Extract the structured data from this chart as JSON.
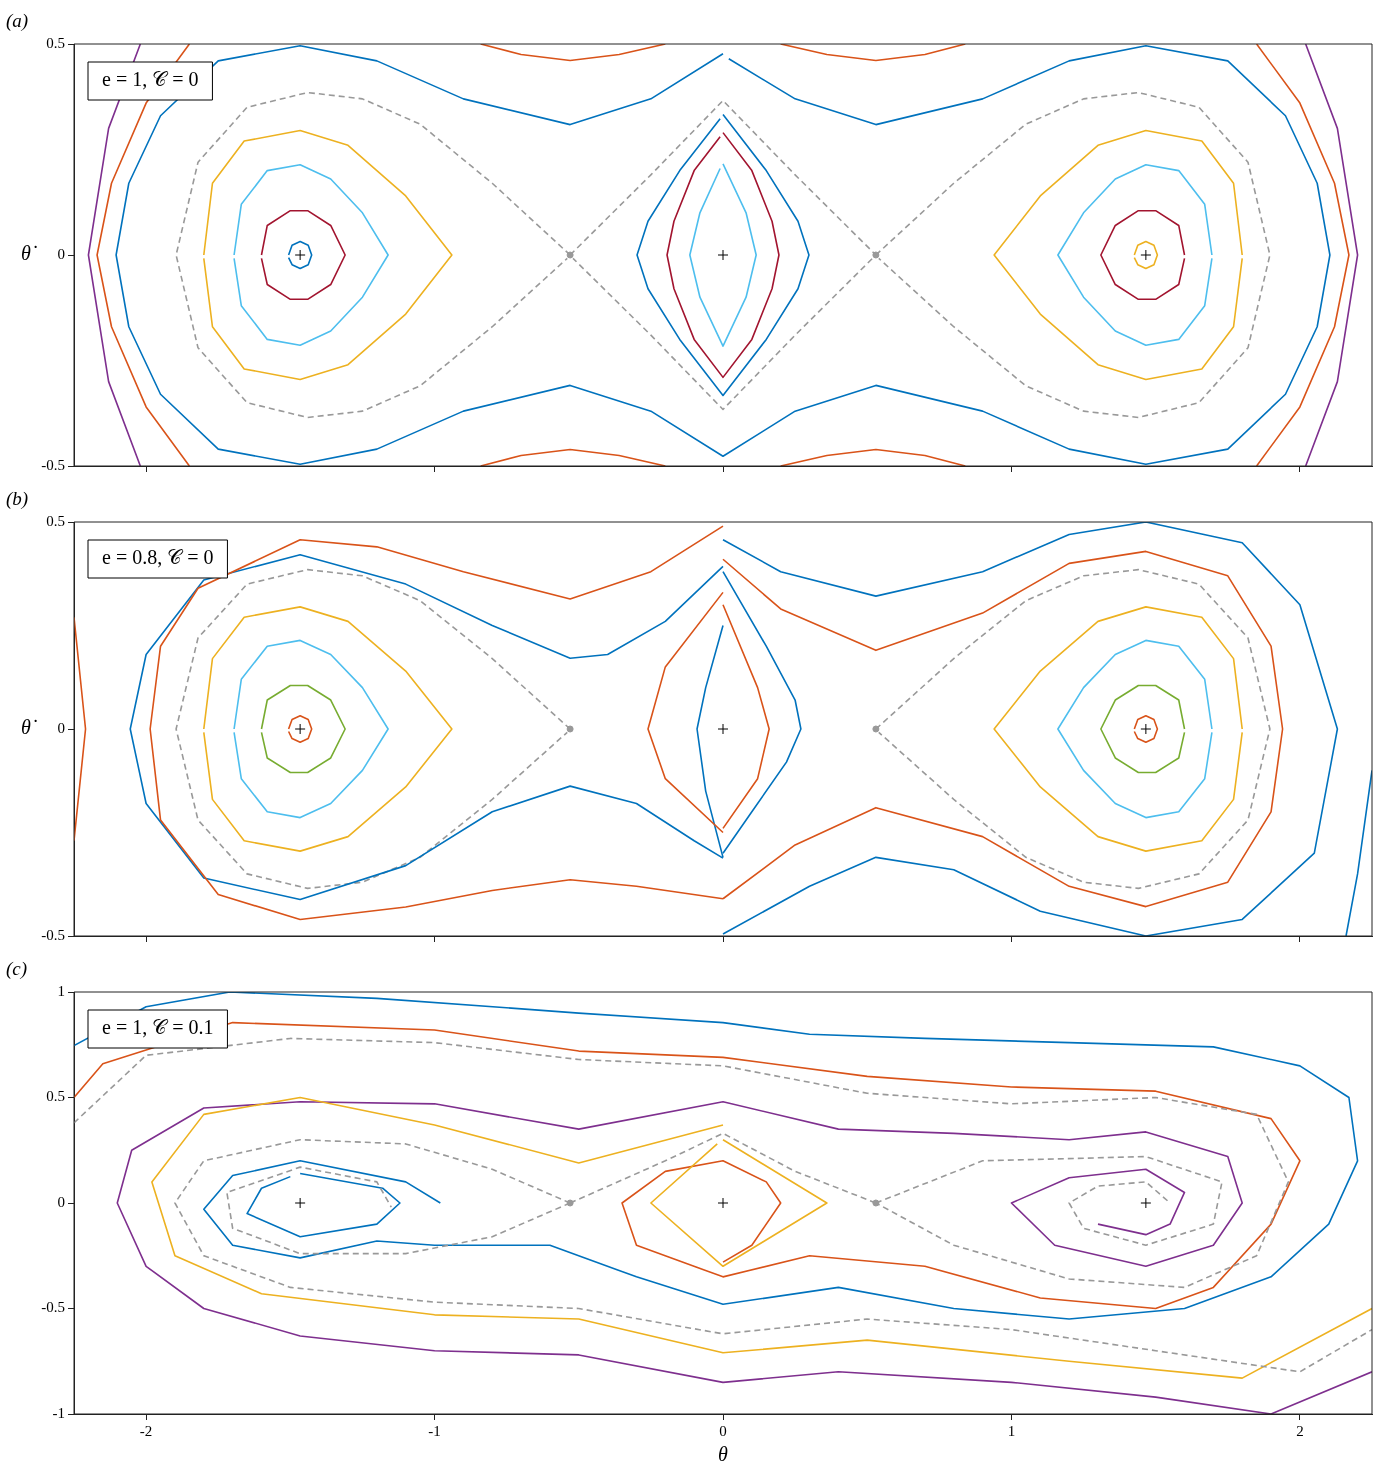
{
  "chart_data": [
    {
      "type": "line",
      "title": "(a)",
      "ylabel": "θ̇",
      "annotations": [
        "e = 1, 𝒞 = 0"
      ],
      "xlim": [
        -2.25,
        2.25
      ],
      "xticks": [
        -2,
        -1,
        0,
        1,
        2
      ],
      "ylim": [
        -0.5,
        0.5
      ],
      "yticks": [
        -0.5,
        0,
        0.5
      ],
      "tick_labels": "y",
      "grid": false,
      "legend": false,
      "series": [
        {
          "color": "#0072bd",
          "x": [
            -1.506,
            -1.494,
            -1.466,
            -1.438,
            -1.426,
            -1.438,
            -1.466,
            -1.494,
            -1.506
          ],
          "values": [
            0,
            0.023,
            0.032,
            0.023,
            0,
            -0.023,
            -0.032,
            -0.023,
            -0.006
          ]
        },
        {
          "color": "#edb120",
          "x": [
            1.426,
            1.438,
            1.466,
            1.494,
            1.506,
            1.494,
            1.466,
            1.438,
            1.426
          ],
          "values": [
            0,
            0.023,
            0.032,
            0.023,
            0,
            -0.023,
            -0.032,
            -0.023,
            -0.006
          ]
        },
        {
          "color": "#a2142f",
          "x": [
            -1.6,
            -1.58,
            -1.5,
            -1.44,
            -1.36,
            -1.31,
            -1.36,
            -1.44,
            -1.5,
            -1.58,
            -1.6
          ],
          "values": [
            0,
            0.07,
            0.105,
            0.105,
            0.07,
            0,
            -0.07,
            -0.105,
            -0.105,
            -0.07,
            -0.008
          ]
        },
        {
          "color": "#a2142f",
          "x": [
            1.6,
            1.58,
            1.5,
            1.44,
            1.36,
            1.31,
            1.36,
            1.44,
            1.5,
            1.58,
            1.6
          ],
          "values": [
            0,
            0.07,
            0.105,
            0.105,
            0.07,
            0,
            -0.07,
            -0.105,
            -0.105,
            -0.07,
            -0.008
          ]
        },
        {
          "color": "#4dbeee",
          "x": [
            -1.695,
            -1.67,
            -1.58,
            -1.466,
            -1.36,
            -1.25,
            -1.161,
            -1.25,
            -1.36,
            -1.466,
            -1.58,
            -1.67,
            -1.695
          ],
          "values": [
            0,
            0.12,
            0.2,
            0.214,
            0.18,
            0.1,
            0,
            -0.1,
            -0.18,
            -0.214,
            -0.2,
            -0.12,
            -0.008
          ]
        },
        {
          "color": "#4dbeee",
          "x": [
            1.695,
            1.67,
            1.58,
            1.466,
            1.36,
            1.25,
            1.161,
            1.25,
            1.36,
            1.466,
            1.58,
            1.67,
            1.695
          ],
          "values": [
            0,
            0.12,
            0.2,
            0.214,
            0.18,
            0.1,
            0,
            -0.1,
            -0.18,
            -0.214,
            -0.2,
            -0.12,
            -0.008
          ]
        },
        {
          "color": "#edb120",
          "x": [
            -1.8,
            -1.77,
            -1.66,
            -1.466,
            -1.3,
            -1.1,
            -0.94,
            -1.1,
            -1.3,
            -1.466,
            -1.66,
            -1.77,
            -1.8
          ],
          "values": [
            0,
            0.17,
            0.27,
            0.295,
            0.26,
            0.14,
            0,
            -0.14,
            -0.26,
            -0.295,
            -0.27,
            -0.17,
            -0.008
          ]
        },
        {
          "color": "#edb120",
          "x": [
            1.8,
            1.77,
            1.66,
            1.466,
            1.3,
            1.1,
            0.94,
            1.1,
            1.3,
            1.466,
            1.66,
            1.77,
            1.8
          ],
          "values": [
            0,
            0.17,
            0.27,
            0.295,
            0.26,
            0.14,
            0,
            -0.14,
            -0.26,
            -0.295,
            -0.27,
            -0.17,
            -0.008
          ]
        },
        {
          "color": "#999999",
          "line_style": "dashed",
          "x": [
            -0.53,
            -0.8,
            -1.05,
            -1.25,
            -1.44,
            -1.65,
            -1.82,
            -1.896,
            -1.82,
            -1.65,
            -1.44,
            -1.25,
            -1.05,
            -0.8,
            -0.54
          ],
          "values": [
            0,
            0.17,
            0.31,
            0.37,
            0.385,
            0.35,
            0.22,
            0,
            -0.22,
            -0.35,
            -0.385,
            -0.37,
            -0.31,
            -0.17,
            -0.008
          ]
        },
        {
          "color": "#999999",
          "line_style": "dashed",
          "x": [
            0.53,
            0.8,
            1.05,
            1.25,
            1.44,
            1.65,
            1.82,
            1.896,
            1.82,
            1.65,
            1.44,
            1.25,
            1.05,
            0.8,
            0.54
          ],
          "values": [
            0,
            0.17,
            0.31,
            0.37,
            0.385,
            0.35,
            0.22,
            0,
            -0.22,
            -0.35,
            -0.385,
            -0.37,
            -0.31,
            -0.17,
            -0.008
          ]
        },
        {
          "color": "#999999",
          "line_style": "dashed",
          "x": [
            -0.53,
            -0.25,
            0,
            0.25,
            0.53,
            0.25,
            0,
            -0.25,
            -0.52
          ],
          "values": [
            0,
            0.19,
            0.366,
            0.19,
            0,
            -0.19,
            -0.366,
            -0.19,
            -0.008
          ]
        },
        {
          "color": "#4dbeee",
          "x": [
            0,
            0.08,
            0.115,
            0.08,
            0,
            -0.08,
            -0.115,
            -0.08,
            -0.01
          ],
          "values": [
            0.216,
            0.1,
            0,
            -0.1,
            -0.216,
            -0.1,
            0,
            0.1,
            0.205
          ]
        },
        {
          "color": "#a2142f",
          "x": [
            0,
            0.1,
            0.17,
            0.194,
            0.17,
            0.1,
            0,
            -0.1,
            -0.17,
            -0.194,
            -0.17,
            -0.1,
            -0.01
          ],
          "values": [
            0.29,
            0.2,
            0.08,
            0,
            -0.08,
            -0.2,
            -0.29,
            -0.2,
            -0.08,
            0,
            0.08,
            0.2,
            0.28
          ]
        },
        {
          "color": "#0072bd",
          "x": [
            0,
            0.15,
            0.26,
            0.298,
            0.26,
            0.15,
            0,
            -0.15,
            -0.26,
            -0.298,
            -0.26,
            -0.15,
            -0.01
          ],
          "values": [
            0.333,
            0.2,
            0.08,
            0,
            -0.08,
            -0.2,
            -0.333,
            -0.2,
            -0.08,
            0,
            0.08,
            0.2,
            0.323
          ]
        },
        {
          "color": "#0072bd",
          "x": [
            0,
            -0.25,
            -0.53,
            -0.9,
            -1.2,
            -1.466,
            -1.75,
            -1.95,
            -2.06,
            -2.104,
            -2.06,
            -1.95,
            -1.75,
            -1.466,
            -1.2,
            -0.9,
            -0.53,
            -0.25,
            0,
            0.25,
            0.53,
            0.9,
            1.2,
            1.466,
            1.75,
            1.95,
            2.06,
            2.104,
            2.06,
            1.95,
            1.75,
            1.466,
            1.2,
            0.9,
            0.53,
            0.25,
            0.02
          ],
          "values": [
            0.477,
            0.37,
            0.309,
            0.37,
            0.46,
            0.496,
            0.46,
            0.33,
            0.17,
            0,
            -0.17,
            -0.33,
            -0.46,
            -0.496,
            -0.46,
            -0.37,
            -0.309,
            -0.37,
            -0.477,
            -0.37,
            -0.309,
            -0.37,
            -0.46,
            -0.496,
            -0.46,
            -0.33,
            -0.17,
            0,
            0.17,
            0.33,
            0.46,
            0.496,
            0.46,
            0.37,
            0.309,
            0.37,
            0.465
          ]
        },
        {
          "color": "#d95319",
          "x": [
            -1.85,
            -2.0,
            -2.12,
            -2.17,
            -2.12,
            -2.0,
            -1.85
          ],
          "values": [
            0.5,
            0.36,
            0.17,
            0,
            -0.17,
            -0.36,
            -0.5
          ]
        },
        {
          "color": "#d95319",
          "x": [
            1.85,
            2.0,
            2.12,
            2.17,
            2.12,
            2.0,
            1.85
          ],
          "values": [
            0.5,
            0.36,
            0.17,
            0,
            -0.17,
            -0.36,
            -0.5
          ]
        },
        {
          "color": "#7e2f8e",
          "x": [
            -2.02,
            -2.13,
            -2.2,
            -2.13,
            -2.02
          ],
          "values": [
            0.5,
            0.3,
            0,
            -0.3,
            -0.5
          ]
        },
        {
          "color": "#7e2f8e",
          "x": [
            2.02,
            2.13,
            2.2,
            2.13,
            2.02
          ],
          "values": [
            0.5,
            0.3,
            0,
            -0.3,
            -0.5
          ]
        },
        {
          "color": "#d95319",
          "x": [
            -0.84,
            -0.7,
            -0.53,
            -0.36,
            -0.2
          ],
          "values": [
            0.5,
            0.475,
            0.461,
            0.475,
            0.5
          ]
        },
        {
          "color": "#d95319",
          "x": [
            0.2,
            0.36,
            0.53,
            0.7,
            0.84
          ],
          "values": [
            0.5,
            0.475,
            0.461,
            0.475,
            0.5
          ]
        },
        {
          "color": "#d95319",
          "x": [
            -0.84,
            -0.7,
            -0.53,
            -0.36,
            -0.2
          ],
          "values": [
            -0.5,
            -0.475,
            -0.461,
            -0.475,
            -0.5
          ]
        },
        {
          "color": "#d95319",
          "x": [
            0.2,
            0.36,
            0.53,
            0.7,
            0.84
          ],
          "values": [
            -0.5,
            -0.475,
            -0.461,
            -0.475,
            -0.5
          ]
        },
        {
          "type": "scatter",
          "marker": "cross",
          "color": "#000000",
          "x": [
            -1.466,
            0,
            1.466
          ],
          "values": [
            0,
            0,
            0
          ]
        },
        {
          "type": "scatter",
          "marker": "circle",
          "color": "#999999",
          "x": [
            -0.53,
            0.53
          ],
          "values": [
            0,
            0
          ]
        }
      ]
    },
    {
      "type": "line",
      "title": "(b)",
      "ylabel": "θ̇",
      "annotations": [
        "e = 0.8, 𝒞 = 0"
      ],
      "xlim": [
        -2.25,
        2.25
      ],
      "xticks": [
        -2,
        -1,
        0,
        1,
        2
      ],
      "ylim": [
        -0.5,
        0.5
      ],
      "yticks": [
        -0.5,
        0,
        0.5
      ],
      "tick_labels": "y",
      "grid": false,
      "legend": false,
      "series": [
        {
          "color": "#d95319",
          "x": [
            -1.506,
            -1.494,
            -1.466,
            -1.438,
            -1.426,
            -1.438,
            -1.466,
            -1.494,
            -1.506
          ],
          "values": [
            0,
            0.023,
            0.032,
            0.023,
            0,
            -0.023,
            -0.032,
            -0.023,
            -0.006
          ]
        },
        {
          "color": "#d95319",
          "x": [
            1.426,
            1.438,
            1.466,
            1.494,
            1.506,
            1.494,
            1.466,
            1.438,
            1.426
          ],
          "values": [
            0,
            0.023,
            0.032,
            0.023,
            0,
            -0.023,
            -0.032,
            -0.023,
            -0.006
          ]
        },
        {
          "color": "#77ac30",
          "x": [
            -1.6,
            -1.58,
            -1.5,
            -1.44,
            -1.36,
            -1.31,
            -1.36,
            -1.44,
            -1.5,
            -1.58,
            -1.6
          ],
          "values": [
            0,
            0.07,
            0.105,
            0.105,
            0.07,
            0,
            -0.07,
            -0.105,
            -0.105,
            -0.07,
            -0.008
          ]
        },
        {
          "color": "#77ac30",
          "x": [
            1.6,
            1.58,
            1.5,
            1.44,
            1.36,
            1.31,
            1.36,
            1.44,
            1.5,
            1.58,
            1.6
          ],
          "values": [
            0,
            0.07,
            0.105,
            0.105,
            0.07,
            0,
            -0.07,
            -0.105,
            -0.105,
            -0.07,
            -0.008
          ]
        },
        {
          "color": "#4dbeee",
          "x": [
            -1.695,
            -1.67,
            -1.58,
            -1.466,
            -1.36,
            -1.25,
            -1.161,
            -1.25,
            -1.36,
            -1.466,
            -1.58,
            -1.67,
            -1.695
          ],
          "values": [
            0,
            0.12,
            0.2,
            0.214,
            0.18,
            0.1,
            0,
            -0.1,
            -0.18,
            -0.214,
            -0.2,
            -0.12,
            -0.008
          ]
        },
        {
          "color": "#4dbeee",
          "x": [
            1.695,
            1.67,
            1.58,
            1.466,
            1.36,
            1.25,
            1.161,
            1.25,
            1.36,
            1.466,
            1.58,
            1.67,
            1.695
          ],
          "values": [
            0,
            0.12,
            0.2,
            0.214,
            0.18,
            0.1,
            0,
            -0.1,
            -0.18,
            -0.214,
            -0.2,
            -0.12,
            -0.008
          ]
        },
        {
          "color": "#edb120",
          "x": [
            -1.8,
            -1.77,
            -1.66,
            -1.466,
            -1.3,
            -1.1,
            -0.94,
            -1.1,
            -1.3,
            -1.466,
            -1.66,
            -1.77,
            -1.8
          ],
          "values": [
            0,
            0.17,
            0.27,
            0.295,
            0.26,
            0.14,
            0,
            -0.14,
            -0.26,
            -0.295,
            -0.27,
            -0.17,
            -0.008
          ]
        },
        {
          "color": "#edb120",
          "x": [
            1.8,
            1.77,
            1.66,
            1.466,
            1.3,
            1.1,
            0.94,
            1.1,
            1.3,
            1.466,
            1.66,
            1.77,
            1.8
          ],
          "values": [
            0,
            0.17,
            0.27,
            0.295,
            0.26,
            0.14,
            0,
            -0.14,
            -0.26,
            -0.295,
            -0.27,
            -0.17,
            -0.008
          ]
        },
        {
          "color": "#999999",
          "line_style": "dashed",
          "x": [
            -0.53,
            -0.8,
            -1.05,
            -1.25,
            -1.44,
            -1.65,
            -1.82,
            -1.896,
            -1.82,
            -1.65,
            -1.44,
            -1.25,
            -1.05,
            -0.8,
            -0.54
          ],
          "values": [
            0,
            0.17,
            0.31,
            0.37,
            0.385,
            0.35,
            0.22,
            0,
            -0.22,
            -0.35,
            -0.385,
            -0.37,
            -0.31,
            -0.17,
            -0.008
          ]
        },
        {
          "color": "#999999",
          "line_style": "dashed",
          "x": [
            0.53,
            0.8,
            1.05,
            1.25,
            1.44,
            1.65,
            1.82,
            1.896,
            1.82,
            1.65,
            1.44,
            1.25,
            1.05,
            0.8,
            0.54
          ],
          "values": [
            0,
            0.17,
            0.31,
            0.37,
            0.385,
            0.35,
            0.22,
            0,
            -0.22,
            -0.35,
            -0.385,
            -0.37,
            -0.31,
            -0.17,
            -0.008
          ]
        },
        {
          "color": "#0072bd",
          "x": [
            0,
            -0.2,
            -0.4,
            -0.53,
            -0.8,
            -1.1,
            -1.466,
            -1.8,
            -2.0,
            -2.055,
            -2.0,
            -1.8,
            -1.466,
            -1.1,
            -0.8,
            -0.53,
            -0.3,
            -0.1,
            0
          ],
          "values": [
            0.393,
            0.26,
            0.18,
            0.171,
            0.25,
            0.35,
            0.421,
            0.36,
            0.18,
            0,
            -0.18,
            -0.36,
            -0.412,
            -0.33,
            -0.2,
            -0.138,
            -0.18,
            -0.27,
            -0.312
          ]
        },
        {
          "color": "#0072bd",
          "x": [
            0,
            0.2,
            0.53,
            0.9,
            1.2,
            1.466,
            1.8,
            2.0,
            2.13,
            2.05,
            1.8,
            1.466,
            1.1,
            0.8,
            0.53,
            0.3,
            0
          ],
          "values": [
            0.457,
            0.38,
            0.321,
            0.38,
            0.47,
            0.5,
            0.45,
            0.3,
            0,
            -0.3,
            -0.46,
            -0.5,
            -0.44,
            -0.34,
            -0.31,
            -0.38,
            -0.495
          ]
        },
        {
          "color": "#d95319",
          "x": [
            0,
            0.2,
            0.53,
            0.9,
            1.2,
            1.466,
            1.75,
            1.9,
            1.94,
            1.9,
            1.75,
            1.466,
            1.2,
            0.9,
            0.53,
            0.25,
            0
          ],
          "values": [
            0.41,
            0.29,
            0.19,
            0.28,
            0.4,
            0.429,
            0.37,
            0.2,
            0,
            -0.2,
            -0.37,
            -0.429,
            -0.38,
            -0.26,
            -0.19,
            -0.28,
            -0.41
          ]
        },
        {
          "color": "#d95319",
          "x": [
            0,
            -0.25,
            -0.53,
            -0.9,
            -1.2,
            -1.466,
            -1.82,
            -1.95,
            -1.986,
            -1.95,
            -1.75,
            -1.466,
            -1.1,
            -0.8,
            -0.53,
            -0.3,
            0
          ],
          "values": [
            0.49,
            0.38,
            0.314,
            0.38,
            0.44,
            0.457,
            0.34,
            0.2,
            0,
            -0.22,
            -0.4,
            -0.46,
            -0.43,
            -0.39,
            -0.364,
            -0.38,
            -0.41
          ]
        },
        {
          "color": "#d95319",
          "x": [
            -2.25,
            -2.21,
            -2.25
          ],
          "values": [
            0.27,
            0,
            -0.27
          ]
        },
        {
          "color": "#0072bd",
          "x": [
            2.25,
            2.2,
            2.16
          ],
          "values": [
            -0.1,
            -0.35,
            -0.5
          ]
        },
        {
          "color": "#0072bd",
          "x": [
            0,
            -0.06,
            -0.09,
            -0.06,
            0
          ],
          "values": [
            0.25,
            0.1,
            0,
            -0.15,
            -0.31
          ]
        },
        {
          "color": "#0072bd",
          "x": [
            0,
            0.15,
            0.25,
            0.27,
            0.22,
            0.1,
            0
          ],
          "values": [
            0.38,
            0.2,
            0.07,
            0,
            -0.08,
            -0.2,
            -0.3
          ]
        },
        {
          "color": "#d95319",
          "x": [
            0,
            -0.2,
            -0.26,
            -0.2,
            0
          ],
          "values": [
            0.33,
            0.15,
            0,
            -0.12,
            -0.25
          ]
        },
        {
          "color": "#d95319",
          "x": [
            0,
            0.12,
            0.16,
            0.12,
            0
          ],
          "values": [
            0.3,
            0.1,
            0,
            -0.12,
            -0.24
          ]
        },
        {
          "type": "scatter",
          "marker": "cross",
          "color": "#000000",
          "x": [
            -1.466,
            0,
            1.466
          ],
          "values": [
            0,
            0,
            0
          ]
        },
        {
          "type": "scatter",
          "marker": "circle",
          "color": "#999999",
          "x": [
            -0.53,
            0.53
          ],
          "values": [
            0,
            0
          ]
        }
      ]
    },
    {
      "type": "line",
      "title": "(c)",
      "xlabel": "θ",
      "annotations": [
        "e = 1, 𝒞 = 0.1"
      ],
      "xlim": [
        -2.25,
        2.25
      ],
      "xticks": [
        -2,
        -1,
        0,
        1,
        2
      ],
      "ylim": [
        -1,
        1
      ],
      "yticks": [
        -1,
        -0.5,
        0,
        0.5,
        1
      ],
      "grid": false,
      "legend": false,
      "series": [
        {
          "color": "#0072bd",
          "x": [
            -2.25,
            -2.0,
            -1.71,
            -1.2,
            -0.5,
            0,
            0.3,
            0.7,
            1.2,
            1.7,
            2.0,
            2.17,
            2.2,
            2.1,
            1.9,
            1.6,
            1.2,
            0.8,
            0.4,
            0,
            -0.3,
            -0.6,
            -1.0,
            -1.2,
            -1.466,
            -1.7,
            -1.8,
            -1.7,
            -1.466,
            -1.1,
            -0.98
          ],
          "values": [
            0.746,
            0.93,
            1.0,
            0.97,
            0.9,
            0.855,
            0.8,
            0.78,
            0.76,
            0.74,
            0.65,
            0.5,
            0.2,
            -0.1,
            -0.35,
            -0.5,
            -0.55,
            -0.5,
            -0.4,
            -0.48,
            -0.35,
            -0.2,
            -0.2,
            -0.18,
            -0.26,
            -0.2,
            -0.03,
            0.13,
            0.2,
            0.1,
            0
          ]
        },
        {
          "color": "#0072bd",
          "x": [
            -1.466,
            -1.18,
            -1.12,
            -1.2,
            -1.466,
            -1.65,
            -1.6,
            -1.5
          ],
          "values": [
            0.14,
            0.07,
            0,
            -0.1,
            -0.16,
            -0.05,
            0.07,
            0.125
          ]
        },
        {
          "color": "#d95319",
          "x": [
            -2.25,
            -2.15,
            -1.7,
            -1.0,
            -0.5,
            0,
            0.5,
            1.0,
            1.5,
            1.9,
            2.0,
            1.9,
            1.7,
            1.5,
            1.1,
            0.7,
            0.3,
            0,
            -0.3,
            -0.35,
            -0.2,
            0,
            0.15,
            0.2,
            0.1,
            0
          ],
          "values": [
            0.5,
            0.66,
            0.855,
            0.82,
            0.72,
            0.69,
            0.6,
            0.55,
            0.53,
            0.4,
            0.2,
            -0.1,
            -0.4,
            -0.5,
            -0.45,
            -0.3,
            -0.25,
            -0.35,
            -0.2,
            0,
            0.15,
            0.2,
            0.1,
            0,
            -0.2,
            -0.28
          ]
        },
        {
          "color": "#7e2f8e",
          "x": [
            1.3,
            1.466,
            1.55,
            1.6,
            1.466,
            1.2,
            1.0,
            1.15,
            1.466,
            1.7,
            1.8,
            1.75,
            1.466,
            1.2,
            0.8,
            0.4,
            0,
            -0.5,
            -1.0,
            -1.466,
            -1.8,
            -2.05,
            -2.1,
            -2.0,
            -1.8,
            -1.466,
            -1.0,
            -0.5,
            0,
            0.4,
            1.0,
            1.5,
            1.9,
            2.25
          ],
          "values": [
            -0.1,
            -0.15,
            -0.1,
            0.05,
            0.16,
            0.12,
            0,
            -0.2,
            -0.3,
            -0.2,
            0,
            0.22,
            0.337,
            0.3,
            0.33,
            0.35,
            0.48,
            0.35,
            0.47,
            0.48,
            0.45,
            0.25,
            0,
            -0.3,
            -0.5,
            -0.63,
            -0.7,
            -0.72,
            -0.85,
            -0.8,
            -0.85,
            -0.92,
            -1.0,
            -0.8
          ]
        },
        {
          "color": "#edb120",
          "x": [
            0,
            -0.5,
            -1.0,
            -1.466,
            -1.8,
            -1.98,
            -1.9,
            -1.6,
            -1.0,
            -0.5,
            0,
            0.5,
            1.2,
            1.8,
            2.25
          ],
          "values": [
            0.37,
            0.19,
            0.37,
            0.5,
            0.42,
            0.1,
            -0.25,
            -0.43,
            -0.53,
            -0.55,
            -0.71,
            -0.65,
            -0.75,
            -0.83,
            -0.5
          ]
        },
        {
          "color": "#edb120",
          "x": [
            0,
            0.36,
            0,
            -0.25,
            -0.02
          ],
          "values": [
            0.3,
            0,
            -0.3,
            0,
            0.28
          ]
        },
        {
          "color": "#999999",
          "line_style": "dashed",
          "x": [
            -2.25,
            -2.0,
            -1.5,
            -1.0,
            -0.5,
            0,
            0.5,
            1.0,
            1.5,
            1.85,
            1.96,
            1.85,
            1.6,
            1.2,
            0.8,
            0.53
          ],
          "values": [
            0.38,
            0.7,
            0.78,
            0.76,
            0.68,
            0.65,
            0.52,
            0.47,
            0.5,
            0.42,
            0.1,
            -0.25,
            -0.4,
            -0.36,
            -0.2,
            0
          ]
        },
        {
          "color": "#999999",
          "line_style": "dashed",
          "x": [
            -0.53,
            -0.8,
            -1.1,
            -1.466,
            -1.8,
            -1.9,
            -1.8,
            -1.5,
            -1.0,
            -0.5,
            0,
            0.5,
            1.0,
            1.5,
            2.0,
            2.25
          ],
          "values": [
            0,
            0.16,
            0.28,
            0.3,
            0.2,
            0,
            -0.25,
            -0.4,
            -0.47,
            -0.5,
            -0.62,
            -0.55,
            -0.6,
            -0.7,
            -0.8,
            -0.6
          ]
        },
        {
          "color": "#999999",
          "line_style": "dashed",
          "x": [
            -0.53,
            -0.8,
            -1.1,
            -1.466,
            -1.7,
            -1.72,
            -1.466,
            -1.2,
            -1.15
          ],
          "values": [
            0,
            -0.16,
            -0.24,
            -0.24,
            -0.12,
            0.05,
            0.17,
            0.1,
            -0.02
          ]
        },
        {
          "color": "#999999",
          "line_style": "dashed",
          "x": [
            0.53,
            0.9,
            1.466,
            1.73,
            1.7,
            1.466,
            1.25,
            1.2,
            1.3,
            1.466,
            1.55
          ],
          "values": [
            0,
            0.2,
            0.22,
            0.1,
            -0.1,
            -0.2,
            -0.12,
            0,
            0.08,
            0.1,
            0
          ]
        },
        {
          "color": "#999999",
          "line_style": "dashed",
          "x": [
            -0.53,
            -0.2,
            0,
            0.25,
            0.53
          ],
          "values": [
            0,
            0.2,
            0.33,
            0.15,
            0
          ]
        },
        {
          "type": "scatter",
          "marker": "cross",
          "color": "#000000",
          "x": [
            -1.466,
            0,
            1.466
          ],
          "values": [
            0,
            0,
            0
          ]
        },
        {
          "type": "scatter",
          "marker": "circle",
          "color": "#999999",
          "x": [
            -0.53,
            0.53
          ],
          "values": [
            0,
            0
          ]
        }
      ]
    }
  ]
}
